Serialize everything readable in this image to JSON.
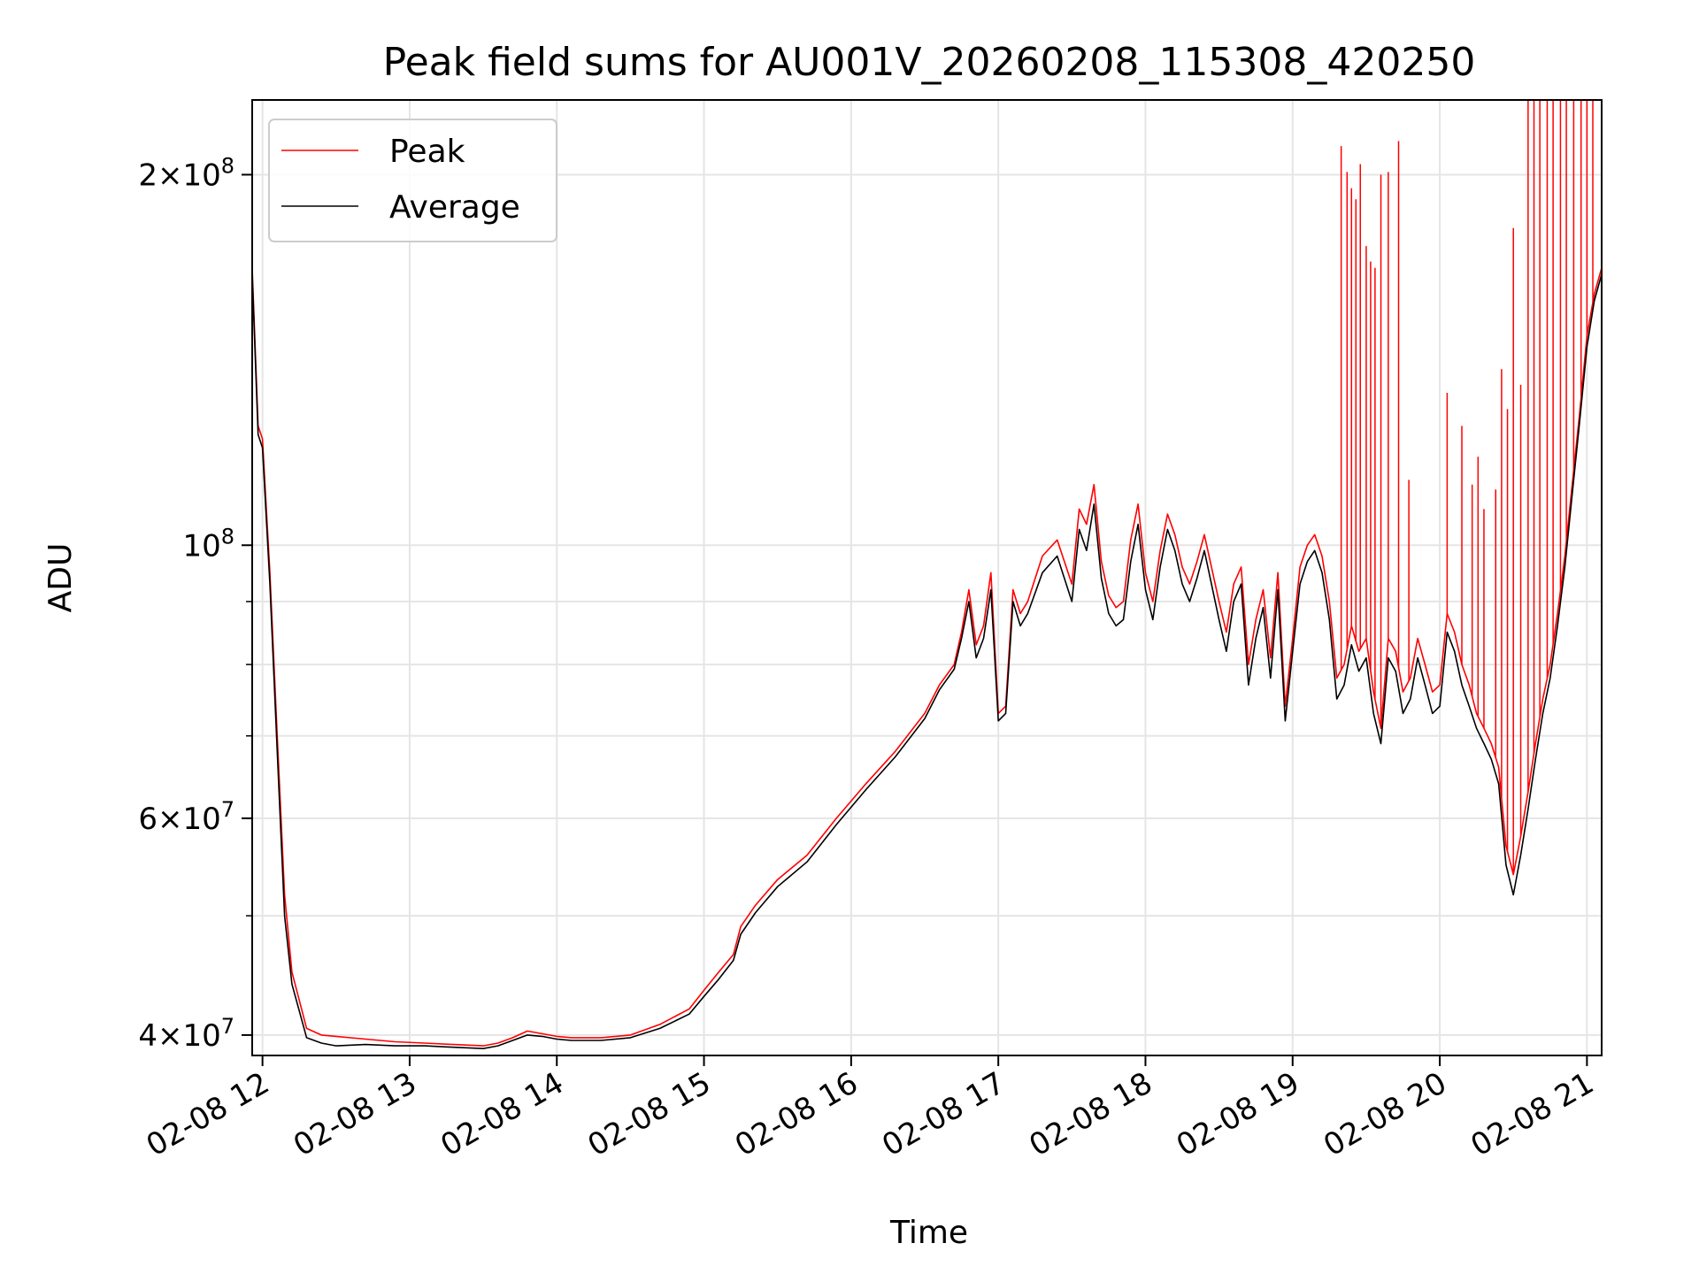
{
  "chart_data": {
    "type": "line",
    "title": "Peak field sums for AU001V_20260208_115308_420250",
    "xlabel": "Time",
    "ylabel": "ADU",
    "yscale": "log",
    "xlim": [
      11.93,
      21.1
    ],
    "ylim": [
      38500000,
      230000000
    ],
    "grid": true,
    "legend_position": "upper-left",
    "x_ticks": [
      {
        "value": 12,
        "label": "02-08 12"
      },
      {
        "value": 13,
        "label": "02-08 13"
      },
      {
        "value": 14,
        "label": "02-08 14"
      },
      {
        "value": 15,
        "label": "02-08 15"
      },
      {
        "value": 16,
        "label": "02-08 16"
      },
      {
        "value": 17,
        "label": "02-08 17"
      },
      {
        "value": 18,
        "label": "02-08 18"
      },
      {
        "value": 19,
        "label": "02-08 19"
      },
      {
        "value": 20,
        "label": "02-08 20"
      },
      {
        "value": 21,
        "label": "02-08 21"
      }
    ],
    "y_ticks": [
      {
        "value": 40000000,
        "mant": "4",
        "exp": "7"
      },
      {
        "value": 60000000,
        "mant": "6",
        "exp": "7"
      },
      {
        "value": 100000000,
        "mant": "",
        "exp": "8"
      },
      {
        "value": 200000000,
        "mant": "2",
        "exp": "8"
      }
    ],
    "y_minor_ticks": [
      50000000,
      70000000,
      80000000,
      90000000
    ],
    "series": [
      {
        "name": "Peak",
        "color": "#ff0000",
        "x": [
          11.93,
          11.97,
          12.0,
          12.05,
          12.1,
          12.15,
          12.2,
          12.3,
          12.4,
          12.5,
          12.7,
          12.9,
          13.1,
          13.3,
          13.5,
          13.6,
          13.7,
          13.8,
          13.9,
          14.0,
          14.1,
          14.3,
          14.5,
          14.7,
          14.9,
          15.0,
          15.1,
          15.2,
          15.25,
          15.35,
          15.5,
          15.7,
          15.9,
          16.1,
          16.3,
          16.5,
          16.6,
          16.7,
          16.75,
          16.8,
          16.85,
          16.9,
          16.95,
          17.0,
          17.05,
          17.1,
          17.15,
          17.2,
          17.3,
          17.4,
          17.5,
          17.55,
          17.6,
          17.65,
          17.7,
          17.75,
          17.8,
          17.85,
          17.9,
          17.95,
          18.0,
          18.05,
          18.1,
          18.15,
          18.2,
          18.25,
          18.3,
          18.35,
          18.4,
          18.5,
          18.55,
          18.6,
          18.65,
          18.7,
          18.75,
          18.8,
          18.85,
          18.9,
          18.95,
          19.0,
          19.05,
          19.1,
          19.15,
          19.2,
          19.25,
          19.3,
          19.35,
          19.4,
          19.45,
          19.5,
          19.55,
          19.6,
          19.65,
          19.7,
          19.75,
          19.8,
          19.85,
          19.9,
          19.95,
          20.0,
          20.05,
          20.1,
          20.15,
          20.2,
          20.25,
          20.3,
          20.35,
          20.4,
          20.45,
          20.5,
          20.55,
          20.6,
          20.65,
          20.7,
          20.75,
          20.8,
          20.85,
          20.9,
          20.95,
          21.0,
          21.05,
          21.1
        ],
        "values": [
          168000000,
          125000000,
          122000000,
          95000000,
          70000000,
          52000000,
          45000000,
          40500000,
          40000000,
          39900000,
          39700000,
          39500000,
          39400000,
          39300000,
          39200000,
          39400000,
          39800000,
          40300000,
          40100000,
          39900000,
          39800000,
          39800000,
          40000000,
          40800000,
          42000000,
          43500000,
          45000000,
          46500000,
          49000000,
          51000000,
          53500000,
          56000000,
          60000000,
          64000000,
          68000000,
          73000000,
          77000000,
          80000000,
          85000000,
          92000000,
          83000000,
          86000000,
          95000000,
          73000000,
          74000000,
          92000000,
          88000000,
          90000000,
          98000000,
          101000000,
          93000000,
          107000000,
          104000000,
          112000000,
          97000000,
          91000000,
          89000000,
          90000000,
          101000000,
          108000000,
          95000000,
          90000000,
          99000000,
          106000000,
          102000000,
          96000000,
          93000000,
          97000000,
          102000000,
          90000000,
          85000000,
          93000000,
          96000000,
          80000000,
          87000000,
          92000000,
          81000000,
          95000000,
          74000000,
          84000000,
          96000000,
          100000000,
          102000000,
          98000000,
          90000000,
          78000000,
          80000000,
          86000000,
          82000000,
          84000000,
          76000000,
          71000000,
          84000000,
          82000000,
          76000000,
          78000000,
          84000000,
          80000000,
          76000000,
          77000000,
          88000000,
          85000000,
          80000000,
          77000000,
          73000000,
          71000000,
          69000000,
          66000000,
          57000000,
          54000000,
          58000000,
          63000000,
          69000000,
          75000000,
          80000000,
          88000000,
          98000000,
          112000000,
          128000000,
          148000000,
          160000000,
          168000000
        ]
      },
      {
        "name": "Average",
        "color": "#000000",
        "x": [
          11.93,
          11.97,
          12.0,
          12.05,
          12.1,
          12.15,
          12.2,
          12.3,
          12.4,
          12.5,
          12.7,
          12.9,
          13.1,
          13.3,
          13.5,
          13.6,
          13.7,
          13.8,
          13.9,
          14.0,
          14.1,
          14.3,
          14.5,
          14.7,
          14.9,
          15.0,
          15.1,
          15.2,
          15.25,
          15.35,
          15.5,
          15.7,
          15.9,
          16.1,
          16.3,
          16.5,
          16.6,
          16.7,
          16.75,
          16.8,
          16.85,
          16.9,
          16.95,
          17.0,
          17.05,
          17.1,
          17.15,
          17.2,
          17.3,
          17.4,
          17.5,
          17.55,
          17.6,
          17.65,
          17.7,
          17.75,
          17.8,
          17.85,
          17.9,
          17.95,
          18.0,
          18.05,
          18.1,
          18.15,
          18.2,
          18.25,
          18.3,
          18.35,
          18.4,
          18.5,
          18.55,
          18.6,
          18.65,
          18.7,
          18.75,
          18.8,
          18.85,
          18.9,
          18.95,
          19.0,
          19.05,
          19.1,
          19.15,
          19.2,
          19.25,
          19.3,
          19.35,
          19.4,
          19.45,
          19.5,
          19.55,
          19.6,
          19.65,
          19.7,
          19.75,
          19.8,
          19.85,
          19.9,
          19.95,
          20.0,
          20.05,
          20.1,
          20.15,
          20.2,
          20.25,
          20.3,
          20.35,
          20.4,
          20.45,
          20.5,
          20.55,
          20.6,
          20.65,
          20.7,
          20.75,
          20.8,
          20.85,
          20.9,
          20.95,
          21.0,
          21.05,
          21.1
        ],
        "values": [
          166000000,
          123000000,
          120000000,
          93000000,
          68000000,
          50000000,
          44000000,
          39800000,
          39400000,
          39200000,
          39300000,
          39200000,
          39200000,
          39100000,
          39000000,
          39200000,
          39600000,
          40000000,
          39900000,
          39700000,
          39600000,
          39600000,
          39800000,
          40500000,
          41600000,
          43000000,
          44400000,
          46000000,
          48300000,
          50300000,
          52800000,
          55300000,
          59300000,
          63300000,
          67300000,
          72300000,
          76300000,
          79300000,
          84000000,
          90000000,
          81000000,
          84000000,
          92000000,
          72000000,
          73000000,
          90000000,
          86000000,
          88000000,
          95000000,
          98000000,
          90000000,
          103000000,
          99000000,
          108000000,
          94000000,
          88000000,
          86000000,
          87000000,
          97000000,
          104000000,
          92000000,
          87000000,
          96000000,
          103000000,
          99000000,
          93000000,
          90000000,
          94000000,
          99000000,
          87000000,
          82000000,
          90000000,
          93000000,
          77000000,
          84000000,
          89000000,
          78000000,
          92000000,
          72000000,
          82000000,
          93000000,
          97000000,
          99000000,
          95000000,
          87000000,
          75000000,
          77000000,
          83000000,
          79000000,
          81000000,
          73000000,
          69000000,
          81000000,
          79000000,
          73000000,
          75000000,
          81000000,
          77000000,
          73000000,
          74000000,
          85000000,
          82000000,
          77000000,
          74000000,
          71000000,
          69000000,
          67000000,
          64000000,
          55000000,
          52000000,
          56000000,
          61000000,
          67000000,
          73000000,
          78000000,
          86000000,
          96000000,
          110000000,
          126000000,
          145000000,
          158000000,
          166000000
        ]
      }
    ],
    "peak_spikes": [
      {
        "x": 19.33,
        "value": 211000000
      },
      {
        "x": 19.37,
        "value": 201000000
      },
      {
        "x": 19.4,
        "value": 195000000
      },
      {
        "x": 19.43,
        "value": 191000000
      },
      {
        "x": 19.46,
        "value": 204000000
      },
      {
        "x": 19.5,
        "value": 175000000
      },
      {
        "x": 19.53,
        "value": 170000000
      },
      {
        "x": 19.56,
        "value": 168000000
      },
      {
        "x": 19.6,
        "value": 200000000
      },
      {
        "x": 19.65,
        "value": 201000000
      },
      {
        "x": 19.72,
        "value": 213000000
      },
      {
        "x": 19.79,
        "value": 113000000
      },
      {
        "x": 20.05,
        "value": 133000000
      },
      {
        "x": 20.15,
        "value": 125000000
      },
      {
        "x": 20.22,
        "value": 112000000
      },
      {
        "x": 20.26,
        "value": 118000000
      },
      {
        "x": 20.3,
        "value": 107000000
      },
      {
        "x": 20.38,
        "value": 111000000
      },
      {
        "x": 20.42,
        "value": 139000000
      },
      {
        "x": 20.46,
        "value": 129000000
      },
      {
        "x": 20.5,
        "value": 181000000
      },
      {
        "x": 20.55,
        "value": 135000000
      },
      {
        "x": 20.6,
        "value": 230000000
      },
      {
        "x": 20.64,
        "value": 230000000
      },
      {
        "x": 20.68,
        "value": 230000000
      },
      {
        "x": 20.73,
        "value": 230000000
      },
      {
        "x": 20.77,
        "value": 230000000
      },
      {
        "x": 20.82,
        "value": 230000000
      },
      {
        "x": 20.86,
        "value": 230000000
      },
      {
        "x": 20.91,
        "value": 230000000
      },
      {
        "x": 20.96,
        "value": 230000000
      },
      {
        "x": 21.0,
        "value": 230000000
      },
      {
        "x": 21.04,
        "value": 230000000
      }
    ]
  }
}
